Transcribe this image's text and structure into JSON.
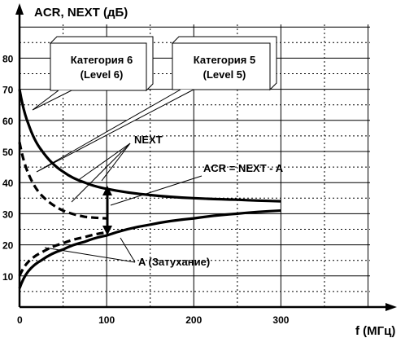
{
  "chart_data": {
    "type": "line",
    "title": "",
    "ylabel": "ACR, NEXT (дБ)",
    "xlabel": "f (МГц)",
    "xlim": [
      0,
      350
    ],
    "ylim": [
      0,
      90
    ],
    "x_ticks": [
      "0",
      "100",
      "200",
      "300"
    ],
    "y_ticks": [
      "10",
      "20",
      "30",
      "40",
      "50",
      "60",
      "70",
      "80"
    ],
    "grid": true,
    "series": [
      {
        "name": "NEXT",
        "category": "Категория 6 (Level 6)",
        "style": "solid",
        "x": [
          0,
          10,
          25,
          50,
          75,
          100,
          150,
          200,
          250,
          300
        ],
        "y": [
          70,
          59,
          50.5,
          43.5,
          40,
          38,
          36,
          35,
          34.5,
          34
        ]
      },
      {
        "name": "NEXT",
        "category": "Категория 5 (Level 5)",
        "style": "dashed",
        "x": [
          0,
          10,
          25,
          50,
          75,
          100
        ],
        "y": [
          53,
          43,
          36,
          31,
          29,
          28.5
        ]
      },
      {
        "name": "A (Затухание)",
        "category": "Категория 6 (Level 6)",
        "style": "solid",
        "x": [
          0,
          10,
          25,
          50,
          75,
          100,
          150,
          200,
          250,
          300
        ],
        "y": [
          6,
          11.5,
          15,
          18.5,
          21,
          23,
          26.5,
          28.5,
          30,
          31
        ]
      },
      {
        "name": "A (Затухание)",
        "category": "Категория 5 (Level 5)",
        "style": "dashed",
        "x": [
          0,
          10,
          25,
          50,
          75,
          100
        ],
        "y": [
          10,
          14.5,
          17.5,
          20.5,
          22.5,
          24
        ]
      }
    ],
    "annotations": {
      "callout_cat6": [
        "Категория 6",
        "(Level 6)"
      ],
      "callout_cat5": [
        "Категория 5",
        "(Level 5)"
      ],
      "next": "NEXT",
      "acr": "ACR = NEXT - A",
      "attenuation": "A (Затухание)"
    }
  }
}
